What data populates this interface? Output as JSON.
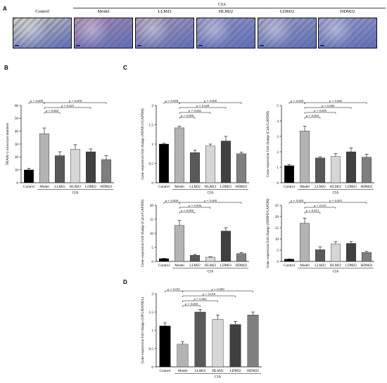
{
  "panel_labels": {
    "A": "A",
    "B": "B",
    "C": "C",
    "D": "D"
  },
  "panel_a": {
    "group_label": "CIA",
    "images": [
      {
        "label": "Control",
        "tint": "#d8d2b8"
      },
      {
        "label": "Model",
        "tint": "#b98fae"
      },
      {
        "label": "LLMJ2",
        "tint": "#b7a2b2"
      },
      {
        "label": "HLMJ2",
        "tint": "#9f9ec4"
      },
      {
        "label": "LDMJ2",
        "tint": "#a7a8c0"
      },
      {
        "label": "HDMJ2",
        "tint": "#a3a4c8"
      }
    ],
    "stain_color": "#5f6fb6"
  },
  "bar_colors": [
    "#000000",
    "#b3b3b3",
    "#595959",
    "#d6d6d6",
    "#404040",
    "#7f7f7f"
  ],
  "chart_data": [
    {
      "id": "B",
      "type": "bar",
      "categories": [
        "Control",
        "Model",
        "LLMJ2",
        "HLMJ2",
        "LDMJ2",
        "HDMJ2"
      ],
      "values": [
        10,
        38,
        21,
        26,
        24,
        18
      ],
      "errors": [
        1.2,
        4.5,
        3.0,
        3.5,
        2.2,
        3.0
      ],
      "ylabel": "TRAP(+) osteoclast numbers",
      "xlabel": "CIA",
      "ylim": [
        0,
        60
      ],
      "yticks": [
        0,
        10,
        20,
        30,
        40,
        50,
        60
      ],
      "group_start": 1,
      "brackets": [
        {
          "from": 0,
          "to": 1,
          "label": "p = 0.000",
          "level": 3
        },
        {
          "from": 1,
          "to": 2,
          "label": "p = 0.002",
          "level": 1
        },
        {
          "from": 1,
          "to": 4,
          "label": "p = 0.023",
          "level": 2
        },
        {
          "from": 1,
          "to": 5,
          "label": "p = 0.000",
          "level": 3
        }
      ]
    },
    {
      "id": "C1",
      "type": "bar",
      "categories": [
        "Control",
        "Model",
        "LLMJ2",
        "HLMJ2",
        "LDMJ2",
        "HDMJ2"
      ],
      "values": [
        1.0,
        1.42,
        0.78,
        0.95,
        1.08,
        0.75
      ],
      "errors": [
        0.02,
        0.04,
        0.06,
        0.05,
        0.12,
        0.04
      ],
      "ylabel": "Gene expression fold change (NFATc1/GAPDH)",
      "xlabel": "CIA",
      "ylim": [
        0,
        2
      ],
      "yticks": [
        0,
        0.5,
        1,
        1.5,
        2
      ],
      "group_start": 1,
      "brackets": [
        {
          "from": 0,
          "to": 1,
          "label": "p = 0.004",
          "level": 4
        },
        {
          "from": 1,
          "to": 2,
          "label": "p = 0.000",
          "level": 1
        },
        {
          "from": 1,
          "to": 3,
          "label": "p = 0.002",
          "level": 2
        },
        {
          "from": 1,
          "to": 4,
          "label": "p = 0.028",
          "level": 3
        },
        {
          "from": 1,
          "to": 5,
          "label": "p = 0.000",
          "level": 4
        }
      ]
    },
    {
      "id": "C2",
      "type": "bar",
      "categories": [
        "Control",
        "Model",
        "LLMJ2",
        "HLMJ2",
        "LDMJ2",
        "HDMJ2"
      ],
      "values": [
        1.1,
        3.35,
        1.6,
        1.7,
        2.0,
        1.65
      ],
      "errors": [
        0.08,
        0.3,
        0.08,
        0.18,
        0.25,
        0.2
      ],
      "ylabel": "Gene expression fold change (Ctsk/GAPDH)",
      "xlabel": "CIA",
      "ylim": [
        0,
        5
      ],
      "yticks": [
        0,
        1,
        2,
        3,
        4,
        5
      ],
      "group_start": 1,
      "brackets": [
        {
          "from": 0,
          "to": 1,
          "label": "p = 0.000",
          "level": 4
        },
        {
          "from": 1,
          "to": 2,
          "label": "p = 0.002",
          "level": 1
        },
        {
          "from": 1,
          "to": 3,
          "label": "p = 0.005",
          "level": 2
        },
        {
          "from": 1,
          "to": 4,
          "label": "p = 0.046",
          "level": 3
        },
        {
          "from": 1,
          "to": 5,
          "label": "p = 0.002",
          "level": 4
        }
      ]
    },
    {
      "id": "C3",
      "type": "bar",
      "categories": [
        "Control",
        "Model",
        "LLMJ2",
        "HLMJ2",
        "LDMJ2",
        "HDMJ2"
      ],
      "values": [
        1.0,
        12.8,
        2.2,
        1.5,
        10.8,
        2.8
      ],
      "errors": [
        0.1,
        1.8,
        0.3,
        0.2,
        1.2,
        0.4
      ],
      "ylabel": "Gene expression fold change (Calcr/GAPDH)",
      "xlabel": "CIA",
      "ylim": [
        0,
        20
      ],
      "yticks": [
        0,
        5,
        10,
        15,
        20
      ],
      "group_start": 1,
      "brackets": [
        {
          "from": 0,
          "to": 1,
          "label": "p = 0.000",
          "level": 3
        },
        {
          "from": 1,
          "to": 2,
          "label": "p = 0.000",
          "level": 1
        },
        {
          "from": 1,
          "to": 3,
          "label": "p = 0.000",
          "level": 2
        },
        {
          "from": 1,
          "to": 5,
          "label": "p = 0.000",
          "level": 3
        }
      ]
    },
    {
      "id": "C4",
      "type": "bar",
      "categories": [
        "Control",
        "Model",
        "LLMJ2",
        "HLMJ2",
        "LDMJ2",
        "HDMJ2"
      ],
      "values": [
        1.0,
        17.0,
        5.2,
        7.8,
        8.0,
        4.0
      ],
      "errors": [
        0.1,
        2.3,
        1.3,
        1.0,
        0.8,
        0.5
      ],
      "ylabel": "Gene expression fold change (MMP9/GAPDH)",
      "xlabel": "CIA",
      "ylim": [
        0,
        25
      ],
      "yticks": [
        0,
        5,
        10,
        15,
        20,
        25
      ],
      "group_start": 1,
      "brackets": [
        {
          "from": 0,
          "to": 1,
          "label": "p = 0.000",
          "level": 3
        },
        {
          "from": 1,
          "to": 2,
          "label": "p = 0.013",
          "level": 1
        },
        {
          "from": 1,
          "to": 3,
          "label": "p = 0.031",
          "level": 2
        },
        {
          "from": 1,
          "to": 5,
          "label": "p = 0.003",
          "level": 3
        }
      ]
    },
    {
      "id": "D",
      "type": "bar",
      "categories": [
        "Control",
        "Model",
        "LLMJ2",
        "HLMJ2",
        "LDMJ2",
        "HDMJ2"
      ],
      "values": [
        1.12,
        0.62,
        1.5,
        1.3,
        1.16,
        1.42
      ],
      "errors": [
        0.08,
        0.07,
        0.07,
        0.12,
        0.08,
        0.08
      ],
      "ylabel": "Gene expression fold change (OPG/RANKL)",
      "xlabel": "CIA",
      "ylim": [
        0,
        2
      ],
      "yticks": [
        0,
        0.5,
        1,
        1.5,
        2
      ],
      "group_start": 1,
      "brackets": [
        {
          "from": 0,
          "to": 1,
          "label": "p = 0.011",
          "level": 4
        },
        {
          "from": 1,
          "to": 2,
          "label": "p = 0.000",
          "level": 1
        },
        {
          "from": 1,
          "to": 3,
          "label": "p = 0.002",
          "level": 2
        },
        {
          "from": 1,
          "to": 4,
          "label": "p = 0.018",
          "level": 3
        },
        {
          "from": 1,
          "to": 5,
          "label": "p = 0.000",
          "level": 4
        }
      ]
    }
  ]
}
